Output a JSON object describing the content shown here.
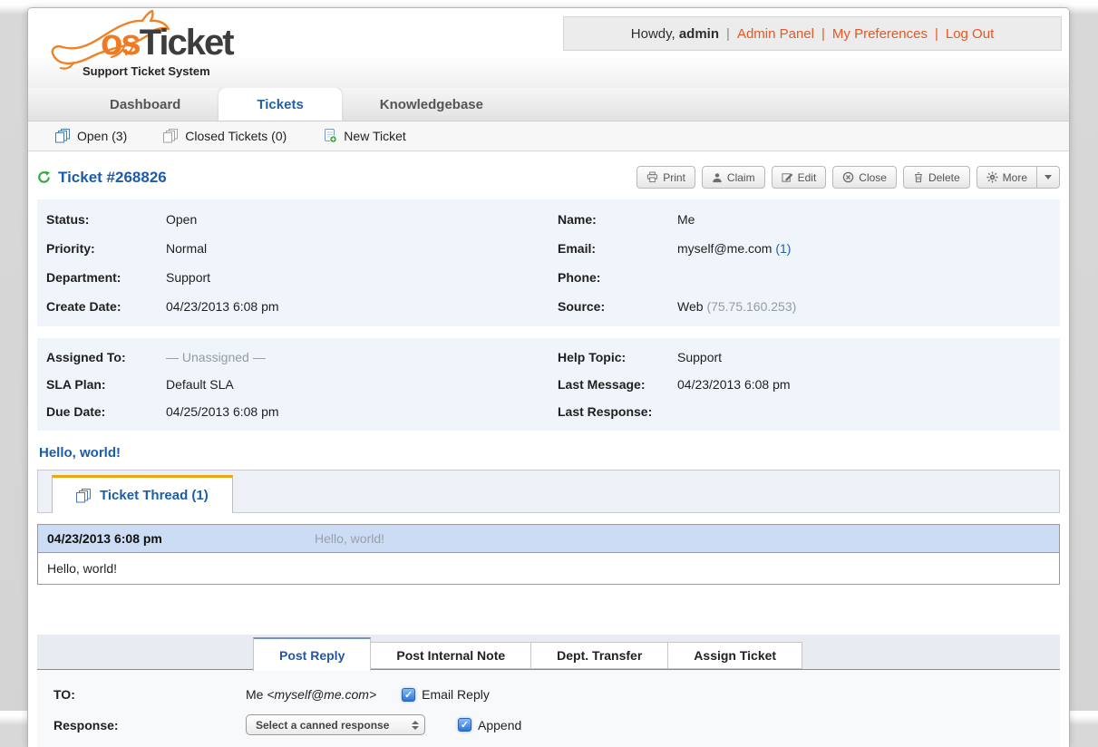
{
  "header": {
    "logo": {
      "os": "os",
      "ticket": "Ticket",
      "tagline": "Support Ticket System"
    },
    "userbar": {
      "greeting": "Howdy,",
      "username": "admin",
      "links": [
        "Admin Panel",
        "My Preferences",
        "Log Out"
      ]
    }
  },
  "nav": {
    "tabs": [
      {
        "label": "Dashboard",
        "active": false
      },
      {
        "label": "Tickets",
        "active": true
      },
      {
        "label": "Knowledgebase",
        "active": false
      }
    ],
    "subnav": [
      {
        "label": "Open (3)",
        "icon": "tickets-stack-blue-icon"
      },
      {
        "label": "Closed Tickets (0)",
        "icon": "tickets-stack-gray-icon"
      },
      {
        "label": "New Ticket",
        "icon": "new-ticket-icon"
      }
    ]
  },
  "ticket": {
    "title": "Ticket #268826",
    "toolbar": [
      {
        "label": "Print",
        "icon": "printer-icon"
      },
      {
        "label": "Claim",
        "icon": "person-icon"
      },
      {
        "label": "Edit",
        "icon": "edit-icon"
      },
      {
        "label": "Close",
        "icon": "close-circle-icon"
      },
      {
        "label": "Delete",
        "icon": "trash-icon"
      },
      {
        "label": "More",
        "icon": "gear-icon",
        "split": "left"
      },
      {
        "label": "",
        "icon": "caret-down-icon",
        "split": "right"
      }
    ],
    "info1": {
      "left": [
        {
          "label": "Status:",
          "parts": [
            {
              "text": "Open"
            }
          ]
        },
        {
          "label": "Priority:",
          "parts": [
            {
              "text": "Normal"
            }
          ]
        },
        {
          "label": "Department:",
          "parts": [
            {
              "text": "Support"
            }
          ]
        },
        {
          "label": "Create Date:",
          "parts": [
            {
              "text": "04/23/2013 6:08 pm"
            }
          ]
        }
      ],
      "right": [
        {
          "label": "Name:",
          "parts": [
            {
              "text": "Me"
            }
          ]
        },
        {
          "label": "Email:",
          "parts": [
            {
              "text": "myself@me.com "
            },
            {
              "text": "(1)",
              "style": "link"
            }
          ]
        },
        {
          "label": "Phone:",
          "parts": []
        },
        {
          "label": "Source:",
          "parts": [
            {
              "text": "Web "
            },
            {
              "text": "(75.75.160.253)",
              "style": "muted"
            }
          ]
        }
      ]
    },
    "info2": {
      "left": [
        {
          "label": "Assigned To:",
          "parts": [
            {
              "text": "— Unassigned —",
              "style": "muted"
            }
          ]
        },
        {
          "label": "SLA Plan:",
          "parts": [
            {
              "text": "Default SLA"
            }
          ]
        },
        {
          "label": "Due Date:",
          "parts": [
            {
              "text": "04/25/2013 6:08 pm"
            }
          ]
        }
      ],
      "right": [
        {
          "label": "Help Topic:",
          "parts": [
            {
              "text": "Support"
            }
          ]
        },
        {
          "label": "Last Message:",
          "parts": [
            {
              "text": "04/23/2013 6:08 pm"
            }
          ]
        },
        {
          "label": "Last Response:",
          "parts": []
        }
      ]
    },
    "subject": "Hello, world!",
    "thread": {
      "tab": "Ticket Thread (1)",
      "icon": "tickets-stack-blue-icon",
      "message": {
        "date": "04/23/2013 6:08 pm",
        "title": "Hello, world!",
        "body": "Hello, world!"
      }
    }
  },
  "reply": {
    "tabs": [
      {
        "label": "Post Reply",
        "active": true
      },
      {
        "label": "Post Internal Note",
        "active": false
      },
      {
        "label": "Dept. Transfer",
        "active": false
      },
      {
        "label": "Assign Ticket",
        "active": false
      }
    ],
    "to": {
      "label": "TO:",
      "parts": [
        {
          "text": "Me "
        },
        {
          "text": "<myself@me.com>",
          "style": "italic"
        }
      ],
      "checkbox": {
        "label": "Email Reply",
        "checked": true
      }
    },
    "response": {
      "label": "Response:",
      "select_value": "Select a canned response",
      "checkbox": {
        "label": "Append",
        "checked": true
      }
    }
  },
  "colors": {
    "accent_orange": "#e8571f",
    "brand_orange": "#f07a22",
    "link_blue": "#1c5da8",
    "thread_tab_border": "#efa412",
    "reply_tab_border": "#7392c0",
    "info_bg": "#eff5fa",
    "message_header_bg": "#cbdcf4"
  }
}
